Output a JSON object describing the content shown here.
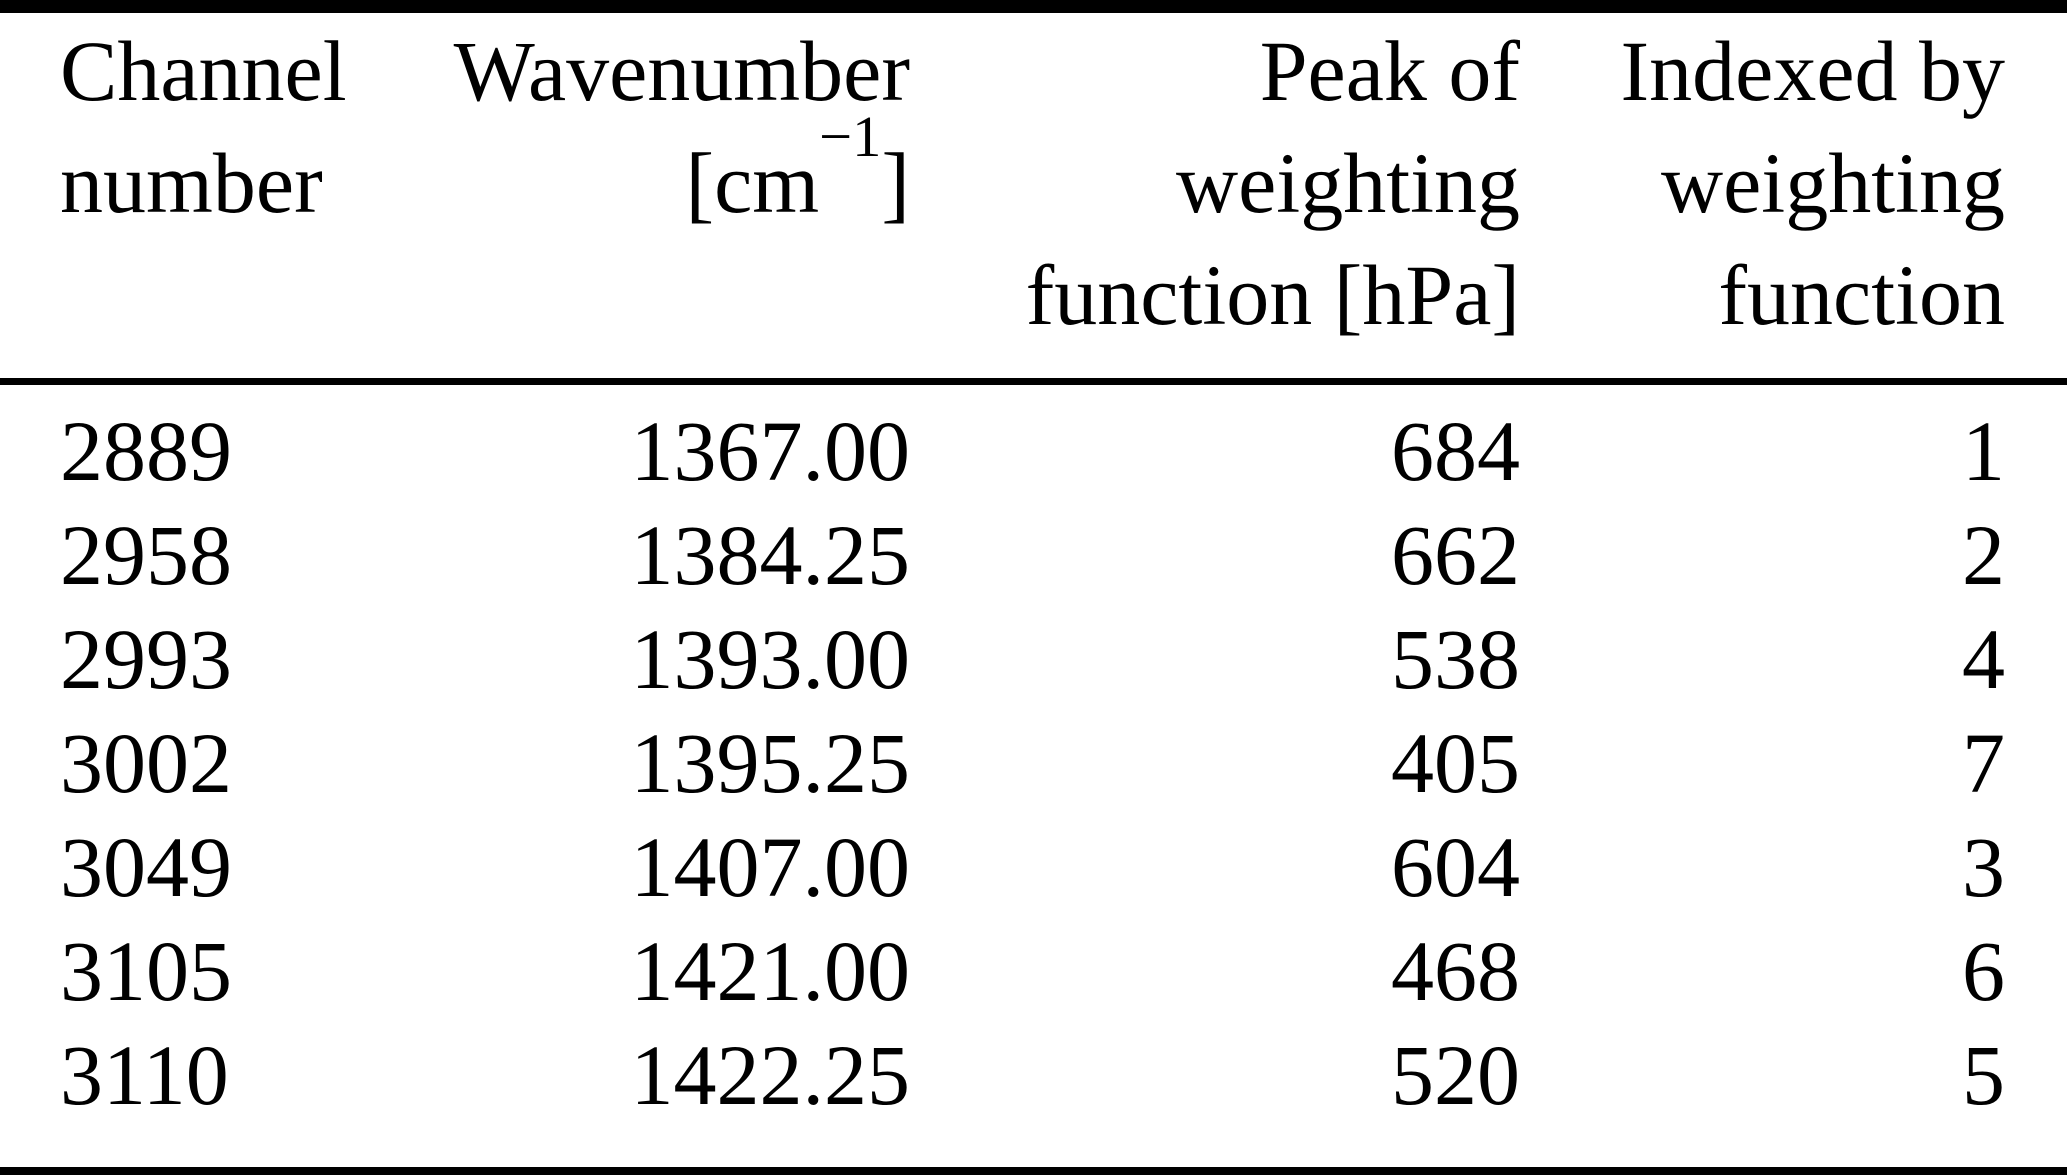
{
  "colors": {
    "background": "#ffffff",
    "text": "#000000",
    "rule": "#000000"
  },
  "table": {
    "columns": [
      {
        "key": "channel",
        "align": "left",
        "header_lines": [
          "Channel",
          "number"
        ]
      },
      {
        "key": "wavenumber",
        "align": "right",
        "header_lines": [
          "Wavenumber"
        ],
        "unit_line": {
          "pre": "[cm",
          "sup": "−1",
          "post": "]"
        }
      },
      {
        "key": "peak",
        "align": "right",
        "header_lines": [
          "Peak of",
          "weighting",
          "function [hPa]"
        ]
      },
      {
        "key": "index",
        "align": "right",
        "header_lines": [
          "Indexed by",
          "weighting",
          "function"
        ]
      }
    ],
    "rows": [
      {
        "channel": "2889",
        "wavenumber": "1367.00",
        "peak": "684",
        "index": "1"
      },
      {
        "channel": "2958",
        "wavenumber": "1384.25",
        "peak": "662",
        "index": "2"
      },
      {
        "channel": "2993",
        "wavenumber": "1393.00",
        "peak": "538",
        "index": "4"
      },
      {
        "channel": "3002",
        "wavenumber": "1395.25",
        "peak": "405",
        "index": "7"
      },
      {
        "channel": "3049",
        "wavenumber": "1407.00",
        "peak": "604",
        "index": "3"
      },
      {
        "channel": "3105",
        "wavenumber": "1421.00",
        "peak": "468",
        "index": "6"
      },
      {
        "channel": "3110",
        "wavenumber": "1422.25",
        "peak": "520",
        "index": "5"
      }
    ]
  }
}
